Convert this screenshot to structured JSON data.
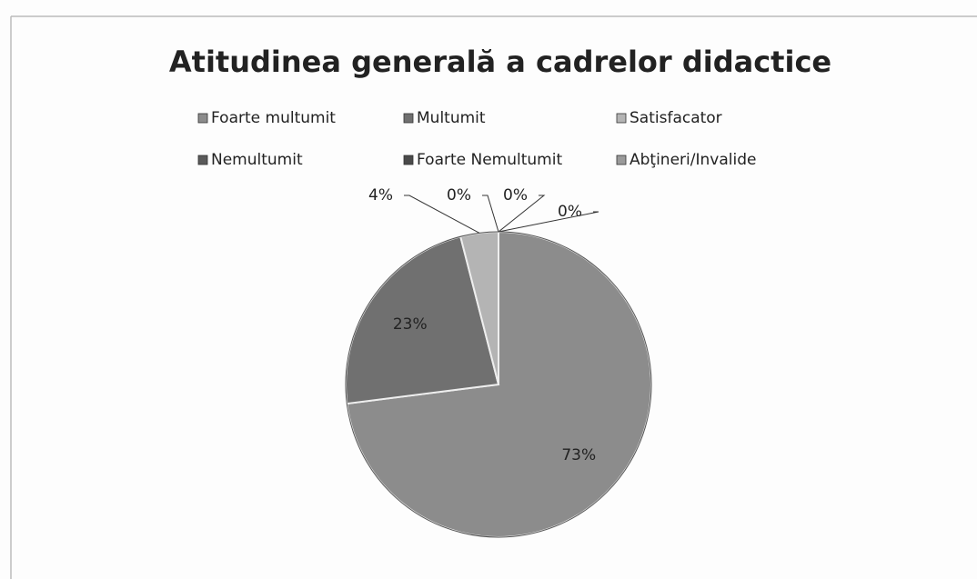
{
  "chart_data": {
    "type": "pie",
    "title": "Atitudinea generală a cadrelor didactice",
    "categories": [
      "Foarte multumit",
      "Multumit",
      "Satisfacator",
      "Nemultumit",
      "Foarte Nemultumit",
      "Abţineri/Invalide"
    ],
    "values": [
      73,
      23,
      4,
      0,
      0,
      0
    ],
    "value_labels": [
      "73%",
      "23%",
      "4%",
      "0%",
      "0%",
      "0%"
    ],
    "colors": [
      "#8c8c8c",
      "#707070",
      "#b4b4b4",
      "#5a5a5a",
      "#4a4a4a",
      "#9a9a9a"
    ],
    "legend": "top"
  }
}
